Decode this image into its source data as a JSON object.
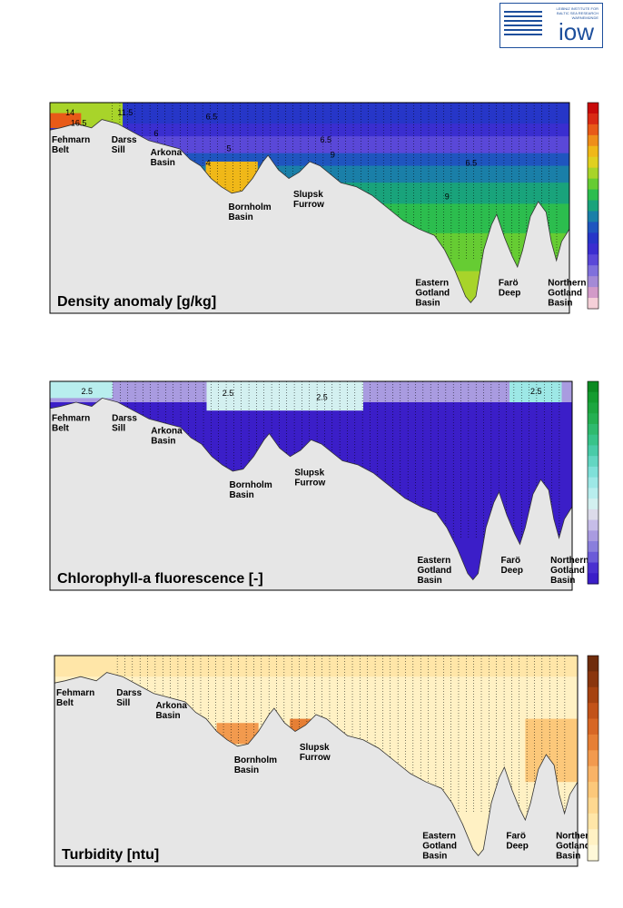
{
  "logo": {
    "text": "iow",
    "subtitle": "LEIBNIZ INSTITUTE FOR BALTIC SEA RESEARCH WARNEMÜNDE"
  },
  "chart_data": [
    {
      "type": "heatmap",
      "title": "Density anomaly [g/kg]",
      "basins": [
        "Fehmarn Belt",
        "Darss Sill",
        "Arkona Basin",
        "Bornholm Basin",
        "Slupsk Furrow",
        "Eastern Gotland Basin",
        "Farö Deep",
        "Northern Gotland Basin"
      ],
      "contour_labels": [
        "14",
        "16.5",
        "11.5",
        "6.5",
        "6.5",
        "6.5",
        "6",
        "9",
        "9",
        "5",
        "4"
      ],
      "grid": false
    },
    {
      "type": "heatmap",
      "title": "Chlorophyll-a fluorescence [-]",
      "basins": [
        "Fehmarn Belt",
        "Darss Sill",
        "Arkona Basin",
        "Bornholm Basin",
        "Slupsk Furrow",
        "Eastern Gotland Basin",
        "Farö Deep",
        "Northern Gotland Basin"
      ],
      "contour_labels": [
        "2.5",
        "2.5",
        "2.5",
        "2.5"
      ],
      "grid": false
    },
    {
      "type": "heatmap",
      "title": "Turbidity [ntu]",
      "basins": [
        "Fehmarn Belt",
        "Darss Sill",
        "Arkona Basin",
        "Bornholm Basin",
        "Slupsk Furrow",
        "Eastern Gotland Basin",
        "Farö Deep",
        "Northern Gotland Basin"
      ],
      "contour_labels": [],
      "grid": false
    }
  ],
  "colors": {
    "seafloor": "#e6e6e6",
    "density_scale": [
      "#f5d0d8",
      "#d29ac8",
      "#a48ad6",
      "#7f70dc",
      "#5a48d8",
      "#3a2ed0",
      "#2636c8",
      "#1f55bf",
      "#1a7fa8",
      "#19a37b",
      "#2cbd4e",
      "#66cc33",
      "#a8d42a",
      "#e0d020",
      "#f0b818",
      "#ef8e1a",
      "#e85a18",
      "#d92a14",
      "#c80a0a"
    ],
    "chl_scale": [
      "#3b1ec8",
      "#4a30d0",
      "#6b5bd8",
      "#8a7fdc",
      "#a99be0",
      "#c6bde8",
      "#dcdbea",
      "#d3f0f0",
      "#b8eeee",
      "#9de8e6",
      "#7fe0d9",
      "#63d6c2",
      "#49cba8",
      "#38c38a",
      "#2fba6e",
      "#25b052",
      "#1da640",
      "#149c30",
      "#0c8a22"
    ],
    "turb_scale": [
      "#fff8d8",
      "#fff1c4",
      "#ffe6a8",
      "#fed890",
      "#fcc87a",
      "#f9b366",
      "#f29a4e",
      "#e67f35",
      "#d76725",
      "#c25319",
      "#a64311",
      "#8a360e",
      "#6f2c0c"
    ]
  }
}
